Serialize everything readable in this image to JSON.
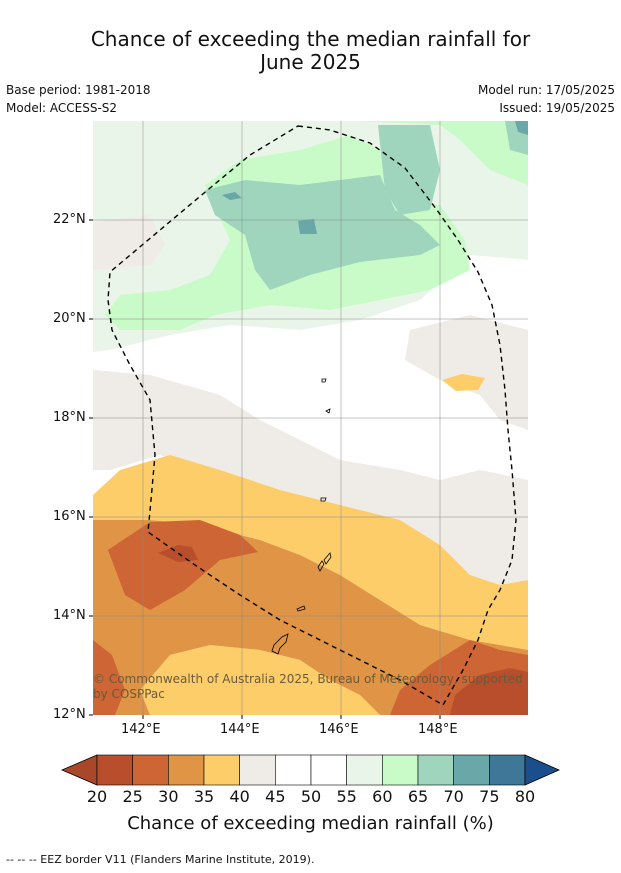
{
  "title_line1": "Chance of exceeding the median rainfall for",
  "title_line2": "June 2025",
  "meta": {
    "base_period": "Base period: 1981-2018",
    "model": "Model: ACCESS-S2",
    "model_run": "Model run: 17/05/2025",
    "issued": "Issued: 19/05/2025"
  },
  "axes": {
    "lat_labels": [
      "22°N",
      "20°N",
      "18°N",
      "16°N",
      "14°N",
      "12°N"
    ],
    "lon_labels": [
      "142°E",
      "144°E",
      "146°E",
      "148°E"
    ]
  },
  "copyright": "© Commonwealth of Australia 2025, Bureau of Meteorology, supported by COSPPac",
  "colorbar": {
    "ticks": [
      "20",
      "25",
      "30",
      "35",
      "40",
      "45",
      "50",
      "55",
      "60",
      "65",
      "70",
      "75",
      "80"
    ],
    "colors": [
      "#a8472a",
      "#b84e2b",
      "#cd6535",
      "#e09445",
      "#fdcd6a",
      "#efebe6",
      "#ffffff",
      "#ffffff",
      "#eaf5ea",
      "#c9fbc9",
      "#9fd5bd",
      "#6aa7a8",
      "#3f7799",
      "#1b4f8c"
    ],
    "label": "Chance of exceeding median rainfall (%)"
  },
  "footer": "--  --  -- EEZ border V11 (Flanders Marine Institute, 2019)."
}
